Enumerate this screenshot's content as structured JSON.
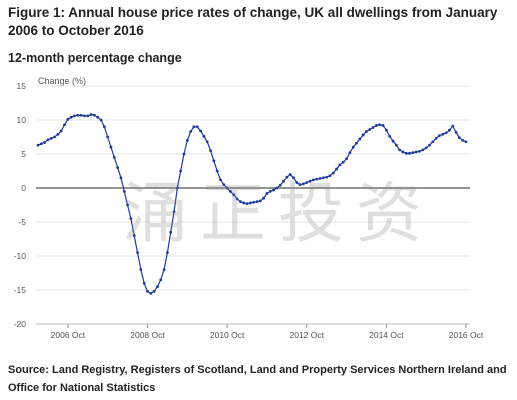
{
  "title": "Figure 1: Annual house price rates of change, UK all dwellings from January 2006 to October 2016",
  "subtitle": "12-month percentage change",
  "source": "Source: Land Registry, Registers of Scotland, Land and Property Services Northern Ireland and Office for National Statistics",
  "watermark": "涌正投资",
  "colors": {
    "line": "#1f3b99",
    "marker": "#1f3b99",
    "zero_line": "#555555",
    "grid": "#e6e6e6",
    "axis_text": "#555555"
  },
  "chart_data": {
    "type": "line",
    "title": "Figure 1: Annual house price rates of change, UK all dwellings from January 2006 to October 2016",
    "subtitle": "12-month percentage change",
    "ylabel": "Change (%)",
    "xlabel": "",
    "ylim": [
      -20,
      15
    ],
    "yticks": [
      15,
      10,
      5,
      0,
      -5,
      -10,
      -15,
      -20
    ],
    "xticks": [
      {
        "label": "2006 Oct",
        "index": 9
      },
      {
        "label": "2008 Oct",
        "index": 33
      },
      {
        "label": "2010 Oct",
        "index": 57
      },
      {
        "label": "2012 Oct",
        "index": 81
      },
      {
        "label": "2014 Oct",
        "index": 105
      },
      {
        "label": "2016 Oct",
        "index": 129
      }
    ],
    "grid": "horizontal",
    "legend": "none",
    "series": [
      {
        "start": "2006-01",
        "frequency": "monthly",
        "values": [
          6.3,
          6.5,
          6.7,
          7.1,
          7.3,
          7.5,
          7.9,
          8.4,
          9.3,
          10.1,
          10.4,
          10.6,
          10.7,
          10.7,
          10.6,
          10.6,
          10.8,
          10.7,
          10.4,
          10.0,
          9.0,
          7.5,
          6.0,
          4.5,
          3.0,
          1.5,
          -0.5,
          -2.5,
          -4.5,
          -7.0,
          -9.5,
          -12.0,
          -14.0,
          -15.2,
          -15.5,
          -15.2,
          -14.5,
          -13.5,
          -12.0,
          -9.5,
          -6.5,
          -3.5,
          0.0,
          2.5,
          5.0,
          7.0,
          8.3,
          9.0,
          9.0,
          8.4,
          7.6,
          6.8,
          5.5,
          4.0,
          2.5,
          1.2,
          0.5,
          0.0,
          -0.5,
          -1.0,
          -1.6,
          -2.0,
          -2.2,
          -2.3,
          -2.2,
          -2.1,
          -2.0,
          -1.9,
          -1.5,
          -0.8,
          -0.5,
          -0.3,
          0.0,
          0.4,
          1.0,
          1.6,
          2.0,
          1.5,
          0.8,
          0.5,
          0.6,
          0.8,
          1.0,
          1.2,
          1.3,
          1.4,
          1.5,
          1.6,
          1.8,
          2.2,
          2.8,
          3.4,
          3.8,
          4.3,
          5.2,
          6.0,
          6.6,
          7.2,
          7.8,
          8.3,
          8.6,
          8.9,
          9.2,
          9.3,
          9.2,
          8.5,
          7.6,
          6.9,
          6.3,
          5.6,
          5.3,
          5.1,
          5.1,
          5.2,
          5.3,
          5.4,
          5.6,
          5.9,
          6.3,
          6.8,
          7.3,
          7.7,
          7.9,
          8.1,
          8.5,
          9.1,
          8.2,
          7.4,
          7.0,
          6.8
        ]
      }
    ]
  }
}
